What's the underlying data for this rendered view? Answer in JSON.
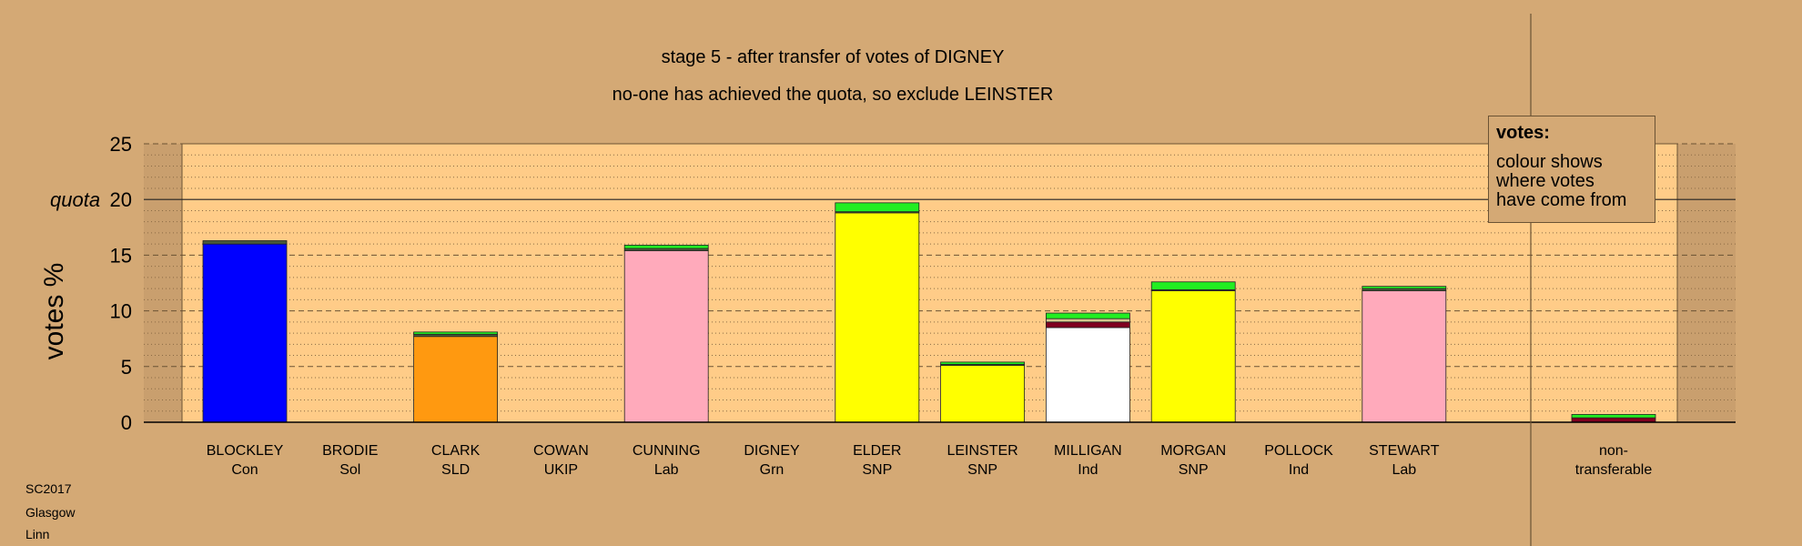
{
  "title": "stage 5 - after transfer of votes of DIGNEY",
  "subtitle": "no-one has achieved the quota, so exclude LEINSTER",
  "ylabel": "votes %",
  "quota_label": "quota",
  "legend": {
    "title": "votes:",
    "lines": [
      "colour shows",
      "where votes",
      "have come from"
    ]
  },
  "footer": [
    "SC2017",
    "Glasgow",
    "Linn"
  ],
  "colors": {
    "plot_bg": "#ffcc88",
    "background": "#d4a975",
    "transfer_green": "#22ee22",
    "transfer_maroon": "#800020",
    "transfer_grey": "#4a5a3a"
  },
  "chart_data": {
    "type": "bar",
    "ylim": [
      0,
      25
    ],
    "yticks": [
      0,
      5,
      10,
      15,
      20,
      25
    ],
    "quota": 20,
    "grid": true,
    "candidates": [
      {
        "name": "BLOCKLEY",
        "party": "Con",
        "color": "#0000ff",
        "segments": [
          {
            "from": "first preference",
            "value": 16.0,
            "color": "#0000ff"
          },
          {
            "from": "transfers",
            "value": 0.3,
            "color": "#4a5a3a"
          }
        ]
      },
      {
        "name": "BRODIE",
        "party": "Sol",
        "color": "#888888",
        "segments": []
      },
      {
        "name": "CLARK",
        "party": "SLD",
        "color": "#ff9910",
        "segments": [
          {
            "from": "first preference",
            "value": 7.7,
            "color": "#ff9910"
          },
          {
            "from": "transfers",
            "value": 0.2,
            "color": "#4a5a3a"
          },
          {
            "from": "transfers",
            "value": 0.2,
            "color": "#22ee22"
          }
        ]
      },
      {
        "name": "COWAN",
        "party": "UKIP",
        "color": "#888888",
        "segments": []
      },
      {
        "name": "CUNNING",
        "party": "Lab",
        "color": "#ffaabb",
        "segments": [
          {
            "from": "first preference",
            "value": 15.4,
            "color": "#ffaabb"
          },
          {
            "from": "transfers",
            "value": 0.2,
            "color": "#4a5a3a"
          },
          {
            "from": "transfers",
            "value": 0.3,
            "color": "#22ee22"
          }
        ]
      },
      {
        "name": "DIGNEY",
        "party": "Grn",
        "color": "#22ee22",
        "segments": []
      },
      {
        "name": "ELDER",
        "party": "SNP",
        "color": "#ffff00",
        "segments": [
          {
            "from": "first preference",
            "value": 18.8,
            "color": "#ffff00"
          },
          {
            "from": "transfers",
            "value": 0.1,
            "color": "#4a5a3a"
          },
          {
            "from": "transfers",
            "value": 0.8,
            "color": "#22ee22"
          }
        ]
      },
      {
        "name": "LEINSTER",
        "party": "SNP",
        "color": "#ffff00",
        "segments": [
          {
            "from": "first preference",
            "value": 5.1,
            "color": "#ffff00"
          },
          {
            "from": "transfers",
            "value": 0.1,
            "color": "#4a5a3a"
          },
          {
            "from": "transfers",
            "value": 0.2,
            "color": "#22ee22"
          }
        ]
      },
      {
        "name": "MILLIGAN",
        "party": "Ind",
        "color": "#ffffff",
        "segments": [
          {
            "from": "first preference",
            "value": 8.5,
            "color": "#ffffff"
          },
          {
            "from": "transfers",
            "value": 0.5,
            "color": "#800020"
          },
          {
            "from": "transfers",
            "value": 0.3,
            "color": "#d4c890"
          },
          {
            "from": "transfers",
            "value": 0.5,
            "color": "#22ee22"
          }
        ]
      },
      {
        "name": "MORGAN",
        "party": "SNP",
        "color": "#ffff00",
        "segments": [
          {
            "from": "first preference",
            "value": 11.8,
            "color": "#ffff00"
          },
          {
            "from": "transfers",
            "value": 0.1,
            "color": "#4a5a3a"
          },
          {
            "from": "transfers",
            "value": 0.7,
            "color": "#22ee22"
          }
        ]
      },
      {
        "name": "POLLOCK",
        "party": "Ind",
        "color": "#888888",
        "segments": []
      },
      {
        "name": "STEWART",
        "party": "Lab",
        "color": "#ffaabb",
        "segments": [
          {
            "from": "first preference",
            "value": 11.8,
            "color": "#ffaabb"
          },
          {
            "from": "transfers",
            "value": 0.2,
            "color": "#4a5a3a"
          },
          {
            "from": "transfers",
            "value": 0.2,
            "color": "#22ee22"
          }
        ]
      }
    ],
    "nontransferable": {
      "label_lines": [
        "non-",
        "transferable"
      ],
      "segments": [
        {
          "value": 0.4,
          "color": "#800020"
        },
        {
          "value": 0.3,
          "color": "#22ee22"
        }
      ]
    }
  }
}
